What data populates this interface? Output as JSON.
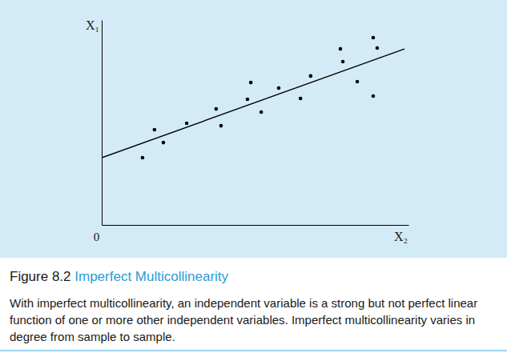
{
  "chart_data": {
    "type": "scatter",
    "figure_label": "Figure 8.2",
    "title": "Imperfect Multicollinearity",
    "caption": "With imperfect multicollinearity, an independent variable is a strong but not perfect linear function of one or more other independent variables. Imperfect multicollinearity varies in degree from sample to sample.",
    "x_label": "X₂",
    "y_label": "X₁",
    "xlim": [
      0,
      100
    ],
    "ylim": [
      0,
      100
    ],
    "xticks": [
      0
    ],
    "yticks": [],
    "tick_labels": "x",
    "grid": false,
    "series": [
      {
        "type": "scatter",
        "color": "#000000",
        "marker": "circle",
        "x": [
          13.3,
          17.2,
          20.1,
          27.7,
          37.3,
          38.9,
          47.5,
          48.6,
          52.0,
          57.7,
          64.8,
          68.1,
          77.8,
          78.6,
          83.3,
          88.5,
          89.8,
          88.5
        ],
        "values": [
          32.8,
          46.5,
          40.2,
          49.6,
          56.6,
          48.4,
          61.3,
          69.5,
          55.1,
          66.8,
          61.7,
          72.7,
          85.9,
          79.7,
          69.9,
          91.4,
          86.3,
          62.9
        ]
      },
      {
        "type": "line",
        "color": "#000000",
        "line_style": "solid",
        "x": [
          0,
          98.7
        ],
        "values": [
          32.8,
          85.9
        ]
      }
    ]
  }
}
